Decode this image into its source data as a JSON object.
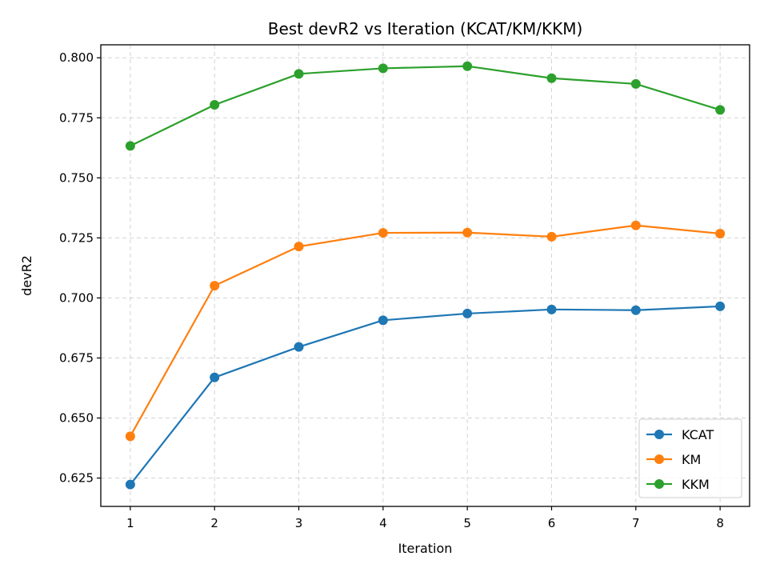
{
  "chart_data": {
    "type": "line",
    "title": "Best devR2 vs Iteration (KCAT/KM/KKM)",
    "xlabel": "Iteration",
    "ylabel": "devR2",
    "x": [
      1,
      2,
      3,
      4,
      5,
      6,
      7,
      8
    ],
    "xlim": [
      0.65,
      8.35
    ],
    "ylim": [
      0.6132,
      0.8054
    ],
    "xticks": [
      "1",
      "2",
      "3",
      "4",
      "5",
      "6",
      "7",
      "8"
    ],
    "yticks": [
      "0.625",
      "0.650",
      "0.675",
      "0.700",
      "0.725",
      "0.750",
      "0.775",
      "0.800"
    ],
    "grid": true,
    "legend_position": "lower-right",
    "series": [
      {
        "name": "KCAT",
        "color": "#1f77b4",
        "values": [
          0.6223,
          0.6669,
          0.6796,
          0.6907,
          0.6935,
          0.6952,
          0.6949,
          0.6965
        ]
      },
      {
        "name": "KM",
        "color": "#ff7f0e",
        "values": [
          0.6424,
          0.7051,
          0.7214,
          0.7271,
          0.7272,
          0.7255,
          0.7302,
          0.7268
        ]
      },
      {
        "name": "KKM",
        "color": "#2ca02c",
        "values": [
          0.7633,
          0.7804,
          0.7933,
          0.7956,
          0.7965,
          0.7915,
          0.7891,
          0.7783
        ]
      }
    ]
  }
}
